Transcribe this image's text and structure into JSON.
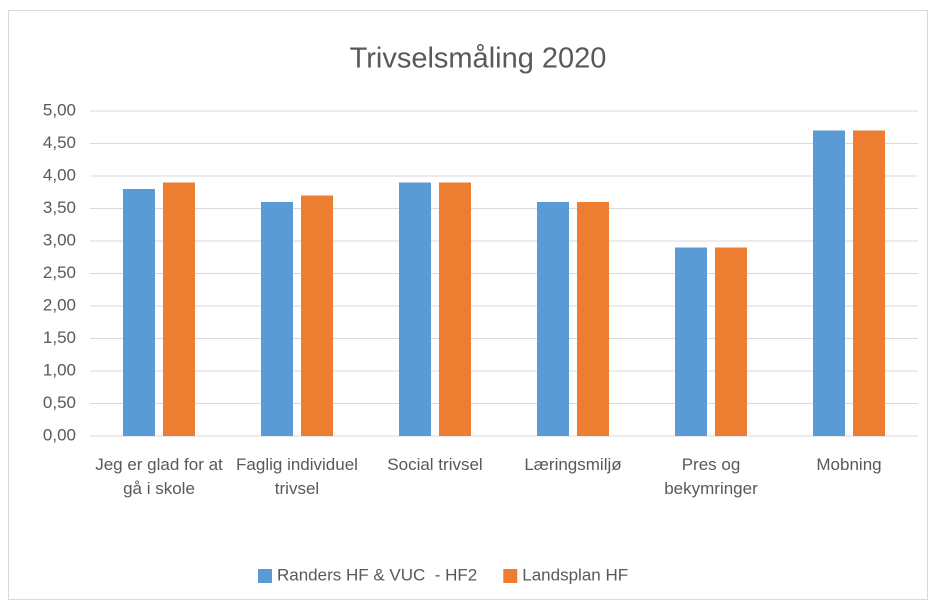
{
  "chart_data": {
    "type": "bar",
    "title": "Trivselsmåling 2020",
    "categories": [
      "Jeg er glad for at gå i skole",
      "Faglig individuel trivsel",
      "Social trivsel",
      "Læringsmiljø",
      "Pres og bekymringer",
      "Mobning"
    ],
    "series": [
      {
        "name": "Randers HF & VUC  - HF2",
        "color": "#5b9bd5",
        "values": [
          3.8,
          3.6,
          3.9,
          3.6,
          2.9,
          4.7
        ]
      },
      {
        "name": "Landsplan HF",
        "color": "#ed7d31",
        "values": [
          3.9,
          3.7,
          3.9,
          3.6,
          2.9,
          4.7
        ]
      }
    ],
    "ylim": [
      0,
      5
    ],
    "yticks": [
      {
        "value": 0,
        "label": "0,00"
      },
      {
        "value": 0.5,
        "label": "0,50"
      },
      {
        "value": 1,
        "label": "1,00"
      },
      {
        "value": 1.5,
        "label": "1,50"
      },
      {
        "value": 2,
        "label": "2,00"
      },
      {
        "value": 2.5,
        "label": "2,50"
      },
      {
        "value": 3,
        "label": "3,00"
      },
      {
        "value": 3.5,
        "label": "3,50"
      },
      {
        "value": 4,
        "label": "4,00"
      },
      {
        "value": 4.5,
        "label": "4,50"
      },
      {
        "value": 5,
        "label": "5,00"
      }
    ],
    "grid": true,
    "legend": "bottom"
  }
}
